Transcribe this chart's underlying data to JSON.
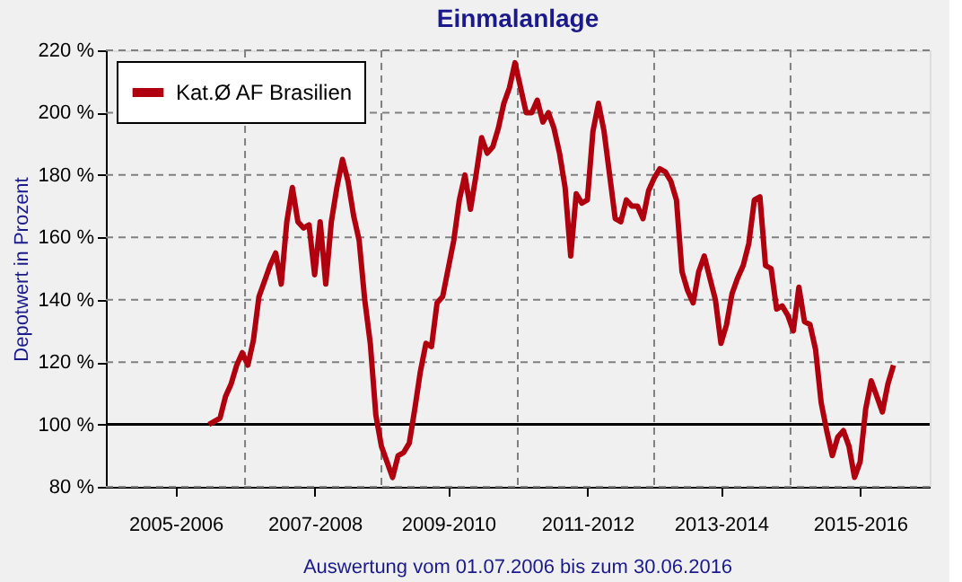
{
  "chart_data": {
    "type": "line",
    "title": "Einmalanlage",
    "ylabel": "Depotwert in Prozent",
    "annotations": [
      "Auswertung vom 01.07.2006 bis zum 30.06.2016"
    ],
    "categories": [
      null,
      null,
      null,
      null,
      null,
      null,
      null,
      null,
      null,
      null,
      null,
      null,
      "2005-2006",
      null,
      null,
      null,
      null,
      null,
      null,
      null,
      null,
      null,
      null,
      null,
      null,
      null,
      null,
      null,
      null,
      null,
      null,
      null,
      null,
      null,
      null,
      null,
      null,
      "2007-2008",
      null,
      null,
      null,
      null,
      null,
      null,
      null,
      null,
      null,
      null,
      null,
      null,
      null,
      null,
      null,
      null,
      null,
      null,
      null,
      null,
      null,
      null,
      null,
      "2009-2010",
      null,
      null,
      null,
      null,
      null,
      null,
      null,
      null,
      null,
      null,
      null,
      null,
      null,
      null,
      null,
      null,
      null,
      null,
      null,
      null,
      null,
      null,
      null,
      null,
      "2011-2012",
      null,
      null,
      null,
      null,
      null,
      null,
      null,
      null,
      null,
      null,
      null,
      null,
      null,
      null,
      null,
      null,
      null,
      null,
      null,
      null,
      null,
      null,
      null,
      "2013-2014",
      null,
      null,
      null,
      null,
      null,
      null,
      null,
      null,
      null,
      null,
      null,
      null,
      null,
      null,
      null,
      null,
      null,
      null,
      null,
      null,
      null,
      null,
      null,
      null,
      "2015-2016",
      null,
      null,
      null,
      null,
      null,
      null,
      null,
      null,
      null,
      null,
      null,
      null
    ],
    "series": [
      {
        "name": "Kat.Ø AF Brasilien",
        "color": "#b00010",
        "values": [
          null,
          null,
          null,
          null,
          null,
          null,
          null,
          null,
          null,
          null,
          null,
          null,
          null,
          null,
          null,
          null,
          null,
          null,
          100,
          101,
          102,
          109,
          113,
          119,
          123,
          119,
          127,
          141,
          146,
          151,
          155,
          145,
          165,
          176,
          165,
          163,
          164,
          148,
          165,
          145,
          165,
          176,
          185,
          178,
          167,
          159,
          140,
          126,
          103,
          93,
          88,
          83,
          90,
          91,
          94,
          105,
          117,
          126,
          125,
          139,
          141,
          150,
          159,
          172,
          180,
          169,
          180,
          192,
          187,
          189,
          195,
          203,
          208,
          216,
          208,
          200,
          200,
          204,
          197,
          200,
          195,
          187,
          176,
          154,
          174,
          171,
          172,
          194,
          203,
          194,
          180,
          166,
          165,
          172,
          170,
          170,
          166,
          175,
          179,
          182,
          181,
          178,
          172,
          149,
          143,
          139,
          149,
          154,
          147,
          140,
          126,
          132,
          142,
          147,
          151,
          158,
          172,
          173,
          151,
          150,
          137,
          138,
          135,
          130,
          144,
          133,
          132,
          124,
          107,
          98,
          90,
          96,
          98,
          93,
          83,
          88,
          105,
          114,
          109,
          104,
          113,
          119,
          null,
          null,
          null,
          null,
          null,
          null
        ]
      }
    ],
    "ylim": [
      80,
      220
    ],
    "yticks": [
      {
        "value": 80,
        "label": "80 %"
      },
      {
        "value": 100,
        "label": "100 %"
      },
      {
        "value": 120,
        "label": "120 %"
      },
      {
        "value": 140,
        "label": "140 %"
      },
      {
        "value": 160,
        "label": "160 %"
      },
      {
        "value": 180,
        "label": "180 %"
      },
      {
        "value": 200,
        "label": "200 %"
      },
      {
        "value": 220,
        "label": "220 %"
      }
    ],
    "ref_lines": [
      {
        "axis": "y",
        "value": 100,
        "label": null,
        "color": "#000000",
        "line_style": "solid"
      }
    ],
    "grid": true,
    "legend": "top left",
    "marker": "none",
    "line_style": "solid"
  }
}
